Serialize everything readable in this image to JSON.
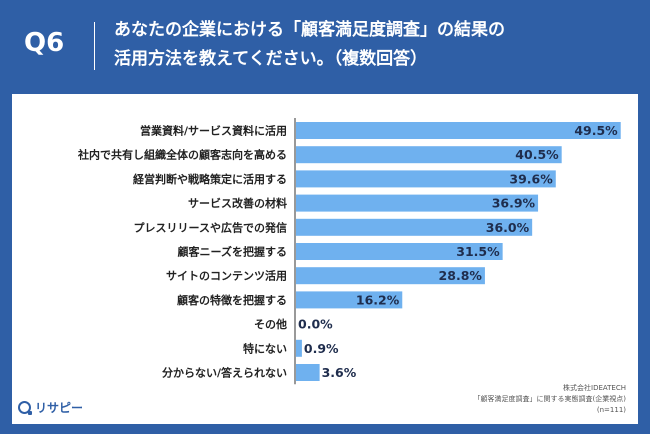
{
  "header": {
    "question_id": "Q6",
    "title_line1": "あなたの企業における「顧客満足度調査」の結果の",
    "title_line2": "活用方法を教えてください。（複数回答）"
  },
  "chart_data": {
    "type": "bar",
    "orientation": "horizontal",
    "categories": [
      "営業資料/サービス資料に活用",
      "社内で共有し組織全体の顧客志向を高める",
      "経営判断や戦略策定に活用する",
      "サービス改善の材料",
      "プレスリリースや広告での発信",
      "顧客ニーズを把握する",
      "サイトのコンテンツ活用",
      "顧客の特徴を把握する",
      "その他",
      "特にない",
      "分からない/答えられない"
    ],
    "values": [
      49.5,
      40.5,
      39.6,
      36.9,
      36.0,
      31.5,
      28.8,
      16.2,
      0.0,
      0.9,
      3.6
    ],
    "value_labels": [
      "49.5%",
      "40.5%",
      "39.6%",
      "36.9%",
      "36.0%",
      "31.5%",
      "28.8%",
      "16.2%",
      "0.0%",
      "0.9%",
      "3.6%"
    ],
    "xlim": [
      0,
      50
    ],
    "bar_color": "#6fb1ef",
    "grid": false
  },
  "source": {
    "line1": "株式会社IDEATECH",
    "line2": "「顧客満足度調査」に関する実態調査(企業視点)",
    "line3": "(n=111)"
  },
  "brand": {
    "name": "リサピー"
  },
  "colors": {
    "background": "#2f5fa6",
    "panel": "#ffffff",
    "bar": "#6fb1ef",
    "axis": "#333333"
  }
}
